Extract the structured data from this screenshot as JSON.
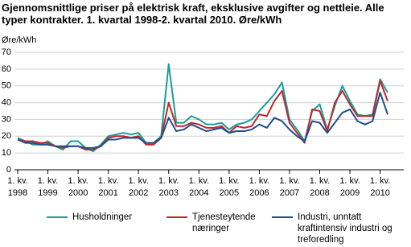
{
  "chart_data": {
    "type": "line",
    "title": "Gjennomsnittlige priser på elektrisk kraft, eksklusive avgifter og nettleie. Alle typer kontrakter. 1. kvartal 1998-2. kvartal 2010. Øre/kWh",
    "y_axis_label": "Øre/kWh",
    "x_label_prefix": "1. kv.",
    "categories": [
      "1998",
      null,
      null,
      null,
      "1999",
      null,
      null,
      null,
      "2000",
      null,
      null,
      null,
      "2001",
      null,
      null,
      null,
      "2002",
      null,
      null,
      null,
      "2003",
      null,
      null,
      null,
      "2004",
      null,
      null,
      null,
      "2005",
      null,
      null,
      null,
      "2006",
      null,
      null,
      null,
      "2007",
      null,
      null,
      null,
      "2008",
      null,
      null,
      null,
      "2009",
      null,
      null,
      null,
      "2010",
      null
    ],
    "series": [
      {
        "name": "Husholdninger",
        "color": "#1a9e9a",
        "values": [
          19,
          17,
          15,
          15,
          17,
          14,
          12,
          17,
          17,
          13,
          11,
          15,
          20,
          21,
          22,
          21,
          22,
          16,
          16,
          20,
          63,
          28,
          28,
          32,
          30,
          27,
          27,
          28,
          24,
          27,
          28,
          30,
          35,
          40,
          45,
          52,
          30,
          24,
          17,
          35,
          39,
          24,
          38,
          50,
          41,
          33,
          32,
          33,
          54,
          46
        ]
      },
      {
        "name": "Tjenesteytende næringer",
        "color": "#c0272d",
        "values": [
          18,
          17,
          17,
          16,
          16,
          14,
          13,
          14,
          14,
          12,
          12,
          14,
          19,
          20,
          20,
          19,
          20,
          15,
          15,
          19,
          40,
          26,
          26,
          28,
          27,
          25,
          25,
          26,
          22,
          26,
          25,
          26,
          33,
          32,
          41,
          47,
          28,
          22,
          16,
          36,
          35,
          23,
          40,
          47,
          39,
          32,
          32,
          32,
          53,
          41
        ]
      },
      {
        "name": "Industri, unntatt kraftintensiv industri og treforedling",
        "color": "#1f4e8c",
        "values": [
          18,
          16,
          16,
          15,
          15,
          14,
          14,
          14,
          14,
          13,
          13,
          14,
          18,
          18,
          19,
          19,
          19,
          16,
          16,
          19,
          31,
          23,
          24,
          27,
          25,
          23,
          24,
          25,
          22,
          23,
          23,
          24,
          27,
          25,
          31,
          29,
          24,
          20,
          17,
          29,
          28,
          22,
          28,
          34,
          36,
          29,
          27,
          29,
          46,
          33
        ]
      }
    ],
    "ylim": [
      0,
      70
    ],
    "yticks": [
      0,
      10,
      20,
      30,
      40,
      50,
      60,
      70
    ],
    "grid": true
  }
}
